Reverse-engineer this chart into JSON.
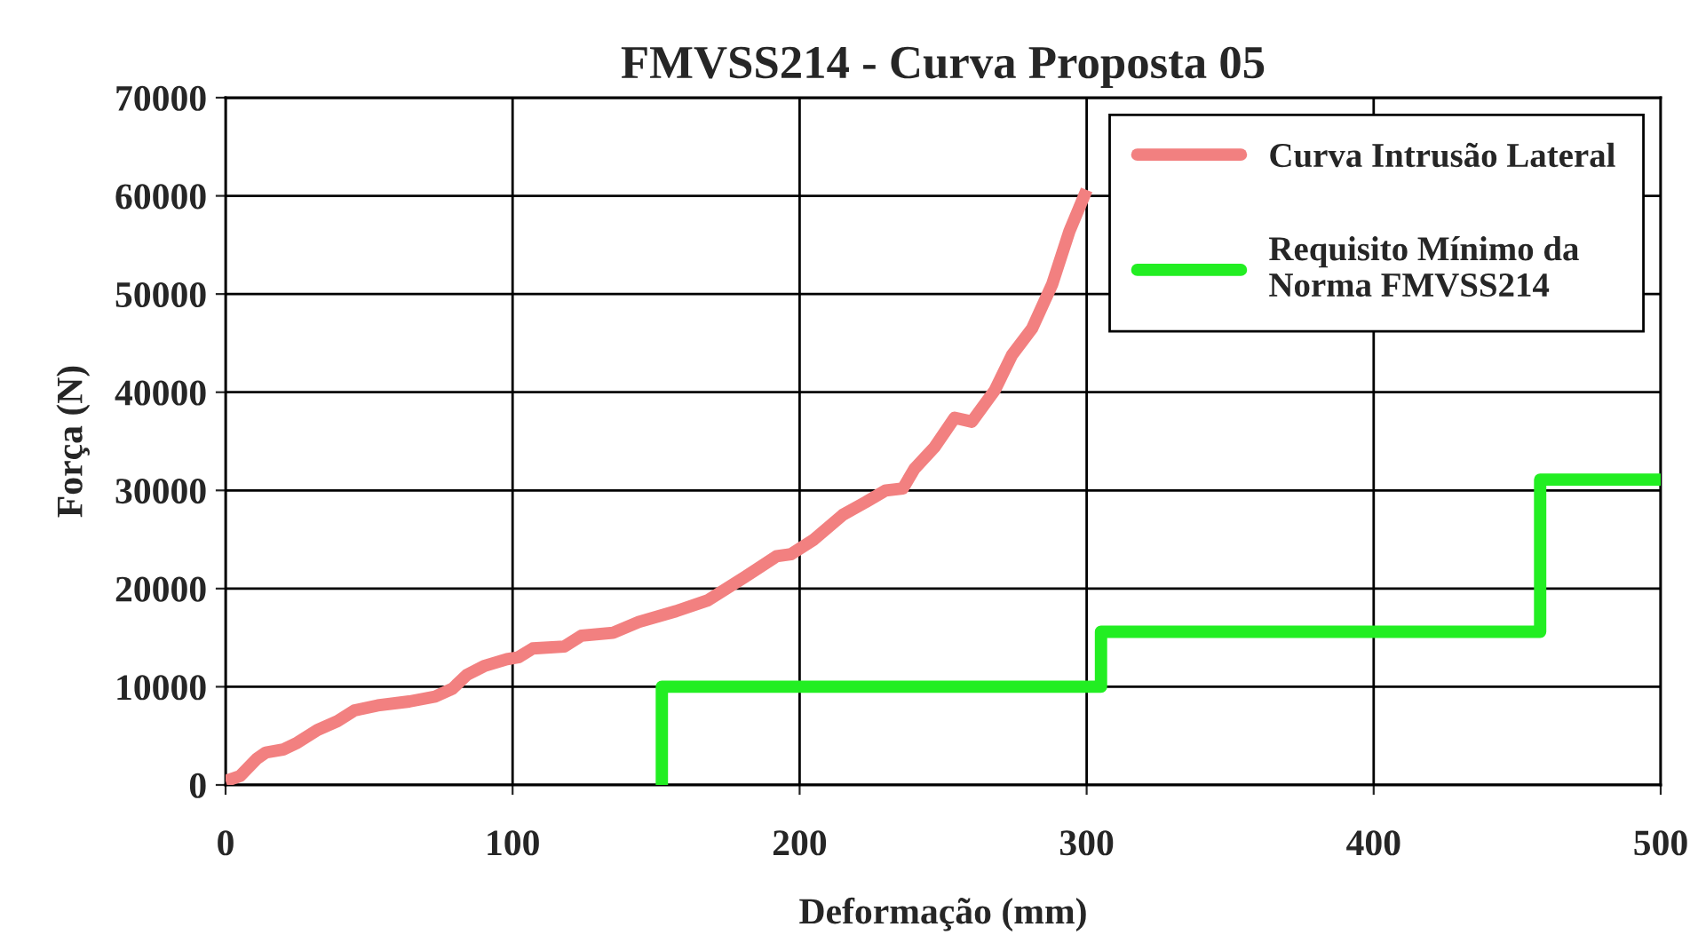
{
  "chart_data": {
    "type": "line",
    "title": "FMVSS214 - Curva Proposta 05",
    "xlabel": "Deformação (mm)",
    "ylabel": "Força (N)",
    "xlim": [
      0,
      500
    ],
    "xticks": [
      0,
      100,
      200,
      300,
      400,
      500
    ],
    "ylim": [
      0,
      70000
    ],
    "yticks": [
      0,
      10000,
      20000,
      30000,
      40000,
      50000,
      60000,
      70000
    ],
    "grid": true,
    "legend": "top right",
    "marker": "none",
    "line_style": "solid",
    "series": [
      {
        "name": "Curva Intrusão Lateral",
        "color": "#f28080",
        "x": [
          0,
          5,
          11,
          14,
          20,
          25,
          32,
          39,
          45,
          53,
          64,
          73,
          79,
          84,
          90,
          98,
          102,
          107,
          118,
          124,
          135,
          144,
          157,
          168,
          181,
          192,
          197,
          205,
          215,
          223,
          230,
          236,
          240,
          247,
          254,
          260,
          268,
          274,
          281,
          288,
          294,
          300
        ],
        "values": [
          400,
          900,
          2700,
          3300,
          3600,
          4300,
          5600,
          6500,
          7600,
          8100,
          8500,
          9000,
          9800,
          11200,
          12100,
          12800,
          13000,
          13900,
          14100,
          15200,
          15500,
          16600,
          17700,
          18800,
          21200,
          23300,
          23500,
          25000,
          27500,
          28800,
          30000,
          30200,
          32200,
          34400,
          37400,
          37000,
          40200,
          43800,
          46500,
          51000,
          56400,
          60600
        ]
      },
      {
        "name": "Requisito Mínimo da\nNorma FMVSS214",
        "color": "#22ee22",
        "type": "step",
        "x": [
          152,
          152,
          305,
          458,
          500
        ],
        "values": [
          0,
          10000,
          15600,
          31100,
          31100
        ]
      }
    ]
  }
}
